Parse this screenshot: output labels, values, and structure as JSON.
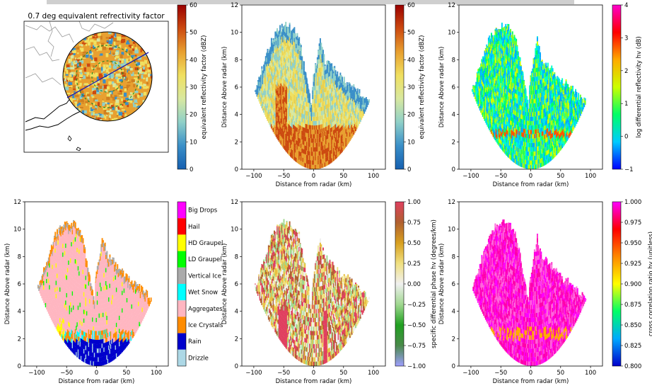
{
  "figure": {
    "topbar_color": "#cfcfcf"
  },
  "chart_data": [
    {
      "type": "map",
      "title": "0.7 deg equivalent refrectivity factor",
      "features": [
        "coastline",
        "prefecture-borders",
        "radar-range-ring",
        "range-circles",
        "cross-section-line"
      ],
      "colorbar": {
        "label": "equivalent reflectivity factor (dBZ)",
        "ticks": [
          "0",
          "10",
          "20",
          "30",
          "40",
          "50",
          "60"
        ],
        "range": [
          0,
          60
        ],
        "colors": [
          "#1660b0",
          "#3a8fc8",
          "#8fd0c8",
          "#d8e8a0",
          "#f0e060",
          "#e8a030",
          "#cc4a10",
          "#9a0000"
        ]
      }
    },
    {
      "type": "heatmap",
      "xlabel": "Distance from radar (km)",
      "ylabel": "Distance Above radar  (km)",
      "xticks": [
        "−100",
        "−50",
        "0",
        "50",
        "100"
      ],
      "yticks": [
        "0",
        "2",
        "4",
        "6",
        "8",
        "10",
        "12"
      ],
      "xlim": [
        -120,
        120
      ],
      "ylim": [
        0,
        12
      ],
      "colorbar": {
        "label": "equivalent reflectivity factor (dBZ)",
        "ticks": [
          "0",
          "10",
          "20",
          "30",
          "40",
          "50",
          "60"
        ],
        "range": [
          0,
          60
        ],
        "colors": [
          "#1660b0",
          "#3a8fc8",
          "#8fd0c8",
          "#d8e8a0",
          "#f0e060",
          "#e8a030",
          "#cc4a10",
          "#9a0000"
        ]
      }
    },
    {
      "type": "heatmap",
      "xlabel": "Distance from radar (km)",
      "ylabel": "Distance Above radar  (km)",
      "xticks": [
        "−100",
        "−50",
        "0",
        "50",
        "100"
      ],
      "yticks": [
        "0",
        "2",
        "4",
        "6",
        "8",
        "10",
        "12"
      ],
      "xlim": [
        -120,
        120
      ],
      "ylim": [
        0,
        12
      ],
      "colorbar": {
        "label": "log differential reflectivity hv (dB)",
        "ticks": [
          "−1",
          "0",
          "1",
          "2",
          "3",
          "4"
        ],
        "range": [
          -1,
          4
        ],
        "colors": [
          "#0000ff",
          "#00ccff",
          "#00ff66",
          "#ccff00",
          "#ffaa00",
          "#ff0000",
          "#ff00cc"
        ]
      }
    },
    {
      "type": "heatmap",
      "xlabel": "Distance from radar (km)",
      "ylabel": "Distance Above radar  (km)",
      "xticks": [
        "−100",
        "−50",
        "0",
        "50",
        "100"
      ],
      "yticks": [
        "0",
        "2",
        "4",
        "6",
        "8",
        "10",
        "12"
      ],
      "xlim": [
        -120,
        120
      ],
      "ylim": [
        0,
        12
      ],
      "colorbar": {
        "type": "categorical",
        "categories": [
          "Big Drops",
          "Hail",
          "HD Graupel",
          "LD Graupel",
          "Vertical Ice",
          "Wet Snow",
          "Aggregates",
          "Ice Crystals",
          "Rain",
          "Drizzle"
        ],
        "category_colors": [
          "#ff00ff",
          "#ff0000",
          "#ffff00",
          "#00ff00",
          "#aaaaaa",
          "#00ffff",
          "#ffb6c1",
          "#ff8c00",
          "#0000cc",
          "#add8e6"
        ]
      }
    },
    {
      "type": "heatmap",
      "xlabel": "Distance from radar (km)",
      "ylabel": "Distance Above radar  (km)",
      "xticks": [
        "−100",
        "−50",
        "0",
        "50",
        "100"
      ],
      "yticks": [
        "0",
        "2",
        "4",
        "6",
        "8",
        "10",
        "12"
      ],
      "xlim": [
        -120,
        120
      ],
      "ylim": [
        0,
        12
      ],
      "colorbar": {
        "label": "specific differential phase hv (degrees/km)",
        "ticks": [
          "−1.00",
          "−0.75",
          "−0.50",
          "−0.25",
          "0.00",
          "0.25",
          "0.50",
          "0.75",
          "1.00"
        ],
        "range": [
          -1,
          1
        ],
        "colors": [
          "#9f9fff",
          "#4a8a4a",
          "#20a020",
          "#a0d890",
          "#f0f0f0",
          "#f0e080",
          "#d8a020",
          "#b06030",
          "#e04060"
        ]
      }
    },
    {
      "type": "heatmap",
      "xlabel": "Distance from radar (km)",
      "ylabel": "Distance Above radar  (km)",
      "xticks": [
        "−100",
        "−50",
        "0",
        "50",
        "100"
      ],
      "yticks": [
        "0",
        "2",
        "4",
        "6",
        "8",
        "10",
        "12"
      ],
      "xlim": [
        -120,
        120
      ],
      "ylim": [
        0,
        12
      ],
      "colorbar": {
        "label": "cross correlation ratio hv (unitless)",
        "ticks": [
          "0.800",
          "0.825",
          "0.850",
          "0.875",
          "0.900",
          "0.925",
          "0.950",
          "0.975",
          "1.000"
        ],
        "range": [
          0.8,
          1.0
        ],
        "colors": [
          "#0000cc",
          "#00aaff",
          "#00ff66",
          "#ffff00",
          "#ff8800",
          "#ff0000",
          "#ff00ff"
        ]
      }
    }
  ]
}
